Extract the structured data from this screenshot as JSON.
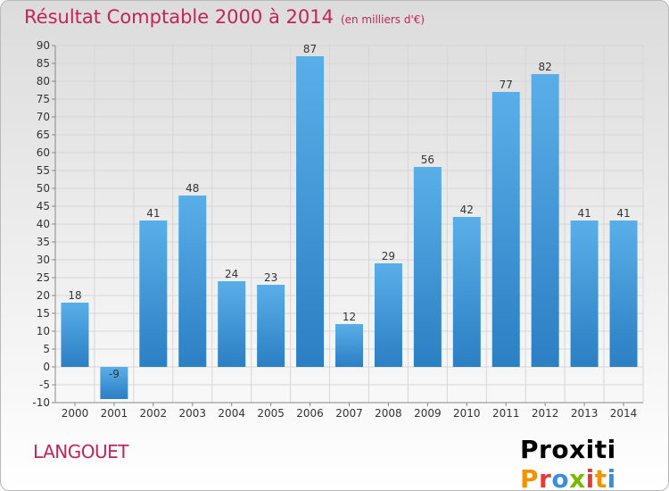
{
  "header": {
    "title": "Résultat Comptable 2000 à 2014",
    "subtitle": "(en milliers d'€)"
  },
  "footer": {
    "commune": "LANGOUET",
    "logo": "Proxiti"
  },
  "colors": {
    "accent": "#c2245a",
    "bar_light": "#5aaee8",
    "bar_dark": "#2b7fc3",
    "logo_letters": [
      "#f29400",
      "#e63a3a",
      "#3b8fd8",
      "#7ab800",
      "#e63a3a",
      "#f29400",
      "#3b8fd8"
    ]
  },
  "chart_data": {
    "type": "bar",
    "title": "Résultat Comptable 2000 à 2014",
    "xlabel": "",
    "ylabel": "",
    "categories": [
      "2000",
      "2001",
      "2002",
      "2003",
      "2004",
      "2005",
      "2006",
      "2007",
      "2008",
      "2009",
      "2010",
      "2011",
      "2012",
      "2013",
      "2014"
    ],
    "values": [
      18,
      -9,
      41,
      48,
      24,
      23,
      87,
      12,
      29,
      56,
      42,
      77,
      82,
      41,
      41
    ],
    "labels": [
      "18",
      "-9",
      "41",
      "48",
      "24",
      "23",
      "87",
      "12",
      "29",
      "56",
      "42",
      "77",
      "82",
      "41",
      "41"
    ],
    "ylim": [
      -10,
      90
    ],
    "yticks": [
      -10,
      -5,
      0,
      5,
      10,
      15,
      20,
      25,
      30,
      35,
      40,
      45,
      50,
      55,
      60,
      65,
      70,
      75,
      80,
      85,
      90
    ],
    "grid": true
  }
}
